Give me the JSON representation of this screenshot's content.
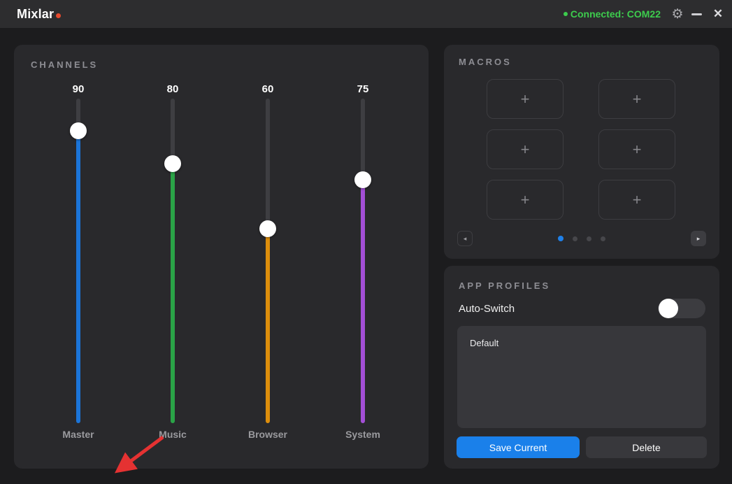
{
  "titlebar": {
    "app_name": "Mixlar",
    "logo_dot_color": "#e64a2e",
    "status": {
      "text": "Connected: COM22",
      "color": "#3dcc4d"
    },
    "settings_icon": "gear",
    "minimize_icon": "minimize",
    "close_icon": "close"
  },
  "channels": {
    "title": "CHANNELS",
    "items": [
      {
        "name": "Master",
        "value": 90,
        "color": "#1b74d8"
      },
      {
        "name": "Music",
        "value": 80,
        "color": "#2aa347"
      },
      {
        "name": "Browser",
        "value": 60,
        "color": "#dd8e0c"
      },
      {
        "name": "System",
        "value": 75,
        "color": "#a34fd6"
      }
    ],
    "annotation": {
      "type": "arrow",
      "points_at": "Master",
      "color": "#e53232"
    }
  },
  "macros": {
    "title": "MACROS",
    "slots": [
      {
        "label": "+"
      },
      {
        "label": "+"
      },
      {
        "label": "+"
      },
      {
        "label": "+"
      },
      {
        "label": "+"
      },
      {
        "label": "+"
      }
    ],
    "pagination": {
      "dots": [
        {
          "active": true
        },
        {
          "active": false
        },
        {
          "active": false
        },
        {
          "active": false
        }
      ],
      "active_color": "#1f80e8",
      "prev_icon": "◂",
      "next_icon": "▸"
    }
  },
  "app_profiles": {
    "title": "APP PROFILES",
    "auto_switch": {
      "label": "Auto-Switch",
      "enabled": false
    },
    "profiles": [
      "Default"
    ],
    "buttons": {
      "save": "Save Current",
      "delete": "Delete",
      "save_color": "#1a80ea"
    }
  }
}
